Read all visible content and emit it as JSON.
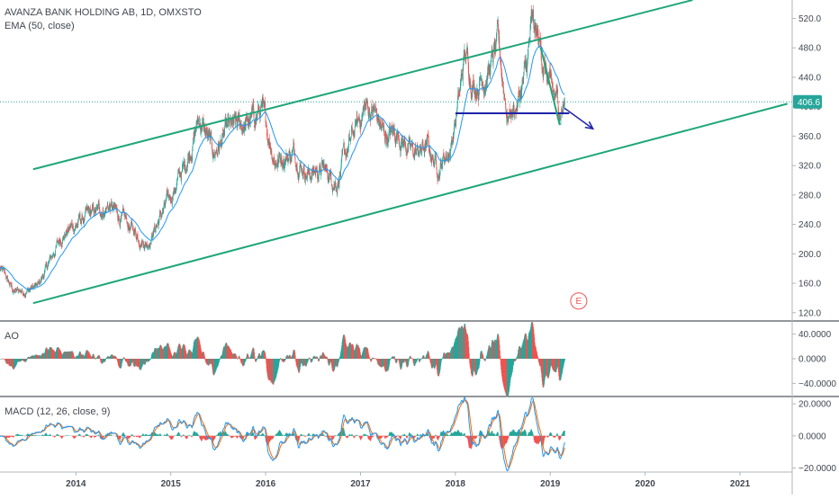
{
  "chart_data": [
    {
      "type": "candlestick",
      "title": "AVANZA BANK HOLDING AB, 1D, OMXSTO",
      "indicator_label": "EMA (50, close)",
      "ylim": [
        110,
        545
      ],
      "yticks": [
        "120.0",
        "160.0",
        "200.0",
        "240.0",
        "280.0",
        "320.0",
        "360.0",
        "400.0",
        "440.0",
        "480.0",
        "520.0"
      ],
      "ytick_values": [
        120,
        160,
        200,
        240,
        280,
        320,
        360,
        400,
        440,
        480,
        520
      ],
      "last_price": 406.6,
      "last_price_label": "406.6",
      "x_start": 2013.2,
      "x_end": 2021.55,
      "anchors": [
        [
          2013.2,
          180
        ],
        [
          2013.35,
          148
        ],
        [
          2013.6,
          155
        ],
        [
          2013.85,
          225
        ],
        [
          2014.05,
          245
        ],
        [
          2014.35,
          265
        ],
        [
          2014.55,
          238
        ],
        [
          2014.75,
          215
        ],
        [
          2014.95,
          265
        ],
        [
          2015.15,
          320
        ],
        [
          2015.3,
          385
        ],
        [
          2015.45,
          335
        ],
        [
          2015.6,
          365
        ],
        [
          2015.85,
          380
        ],
        [
          2015.95,
          395
        ],
        [
          2016.1,
          330
        ],
        [
          2016.3,
          338
        ],
        [
          2016.45,
          310
        ],
        [
          2016.6,
          315
        ],
        [
          2016.75,
          300
        ],
        [
          2016.95,
          370
        ],
        [
          2017.05,
          400
        ],
        [
          2017.15,
          392
        ],
        [
          2017.25,
          360
        ],
        [
          2017.4,
          365
        ],
        [
          2017.55,
          335
        ],
        [
          2017.7,
          345
        ],
        [
          2017.82,
          318
        ],
        [
          2017.95,
          345
        ],
        [
          2018.05,
          420
        ],
        [
          2018.1,
          470
        ],
        [
          2018.2,
          430
        ],
        [
          2018.35,
          450
        ],
        [
          2018.45,
          480
        ],
        [
          2018.55,
          390
        ],
        [
          2018.65,
          402
        ],
        [
          2018.75,
          450
        ],
        [
          2018.8,
          505
        ],
        [
          2018.9,
          478
        ],
        [
          2019.0,
          420
        ],
        [
          2019.1,
          398
        ],
        [
          2019.15,
          406.6
        ]
      ],
      "annotations": {
        "channel_upper": [
          [
            2013.55,
            315
          ],
          [
            2020.5,
            545
          ]
        ],
        "channel_lower": [
          [
            2013.55,
            133
          ],
          [
            2021.5,
            404
          ]
        ],
        "support_line": [
          [
            2018.0,
            391
          ],
          [
            2019.2,
            391
          ]
        ],
        "breakdown_line": [
          [
            2018.9,
            480
          ],
          [
            2019.1,
            375
          ]
        ],
        "projection_arrow": [
          [
            2019.15,
            398
          ],
          [
            2019.45,
            370
          ]
        ],
        "event_marker": {
          "x": 2019.3,
          "value": 136,
          "label": "E"
        }
      },
      "colors": {
        "up": "#26a69a",
        "down": "#ef5350",
        "ema": "#2196f3",
        "channel": "#1fa67a",
        "support": "#1e22aa",
        "last_price": "#26a69a",
        "event": "#ef5350"
      }
    },
    {
      "type": "histogram",
      "indicator_label": "AO",
      "ylim": [
        -60,
        60
      ],
      "yticks": [
        "40.0000",
        "0.0000",
        "−40.0000"
      ],
      "ytick_values": [
        40,
        0,
        -40
      ],
      "colors": {
        "up": "#26a69a",
        "down": "#ef5350"
      }
    },
    {
      "type": "line",
      "indicator_label": "MACD (12, 26, close, 9)",
      "ylim": [
        -22,
        24
      ],
      "yticks": [
        "20.0000",
        "0.0000",
        "−20.0000"
      ],
      "ytick_values": [
        20,
        0,
        -20
      ],
      "colors": {
        "macd": "#2196f3",
        "signal": "#ff6d00",
        "hist_up": "#26a69a",
        "hist_down": "#ef5350"
      }
    }
  ],
  "x_axis": {
    "ticks": [
      "2014",
      "2015",
      "2016",
      "2017",
      "2018",
      "2019",
      "2020",
      "2021"
    ],
    "tick_values": [
      2014,
      2015,
      2016,
      2017,
      2018,
      2019,
      2020,
      2021
    ]
  },
  "grid": false
}
